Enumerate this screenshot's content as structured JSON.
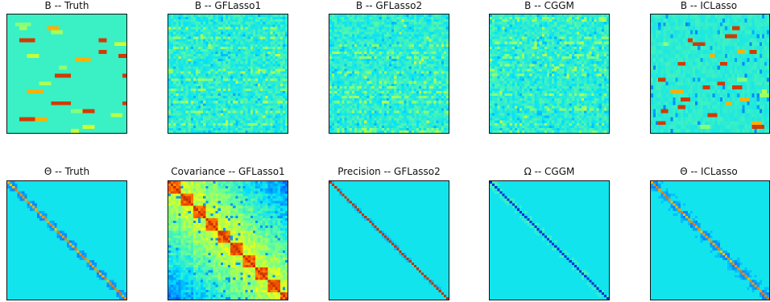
{
  "chart_data": [
    {
      "type": "heatmap",
      "title": "B -- Truth",
      "pattern": "truth_b",
      "grid": [
        30,
        30
      ],
      "seed": 11
    },
    {
      "type": "heatmap",
      "title": "B -- GFLasso1",
      "pattern": "noisy_b",
      "grid": [
        48,
        48
      ],
      "seed": 23
    },
    {
      "type": "heatmap",
      "title": "B -- GFLasso2",
      "pattern": "noisy_b",
      "grid": [
        48,
        48
      ],
      "seed": 37
    },
    {
      "type": "heatmap",
      "title": "B -- CGGM",
      "pattern": "noisy_b",
      "grid": [
        48,
        48
      ],
      "seed": 41
    },
    {
      "type": "heatmap",
      "title": "B -- ICLasso",
      "pattern": "iclasso_b",
      "grid": [
        30,
        48
      ],
      "seed": 53
    },
    {
      "type": "heatmap",
      "title": "Θ -- Truth",
      "pattern": "block_diag",
      "grid": [
        48,
        48
      ],
      "seed": 61
    },
    {
      "type": "heatmap",
      "title": "Covariance -- GFLasso1",
      "pattern": "covariance",
      "grid": [
        48,
        48
      ],
      "seed": 71
    },
    {
      "type": "heatmap",
      "title": "Precision -- GFLasso2",
      "pattern": "thin_diag",
      "grid": [
        48,
        48
      ],
      "seed": 83
    },
    {
      "type": "heatmap",
      "title": "Ω -- CGGM",
      "pattern": "faint_diag",
      "grid": [
        48,
        48
      ],
      "seed": 97
    },
    {
      "type": "heatmap",
      "title": "Θ -- ICLasso",
      "pattern": "block_diag_noisy",
      "grid": [
        48,
        48
      ],
      "seed": 103
    }
  ],
  "colors": {
    "background_b": "#2aa8ee",
    "background_theta": "#00bfff",
    "colormap": [
      "#00008f",
      "#0050ff",
      "#00dfff",
      "#70ff8f",
      "#ffff00",
      "#ff6000",
      "#8f0000"
    ]
  }
}
